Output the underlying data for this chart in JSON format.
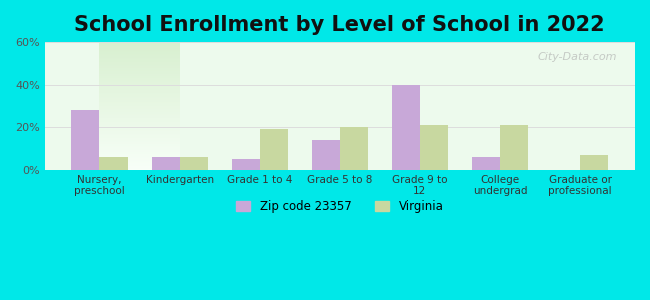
{
  "title": "School Enrollment by Level of School in 2022",
  "categories": [
    "Nursery,\npreschool",
    "Kindergarten",
    "Grade 1 to 4",
    "Grade 5 to 8",
    "Grade 9 to\n12",
    "College\nundergrad",
    "Graduate or\nprofessional"
  ],
  "zip_values": [
    28,
    6,
    5,
    14,
    40,
    6,
    0
  ],
  "va_values": [
    6,
    6,
    19,
    20,
    21,
    21,
    7
  ],
  "zip_color": "#c8a8d8",
  "va_color": "#c8d8a0",
  "background_color": "#00e8e8",
  "plot_bg_gradient_top": "#f0fff0",
  "plot_bg_gradient_bottom": "#e8ffe8",
  "ylim": [
    0,
    60
  ],
  "yticks": [
    0,
    20,
    40,
    60
  ],
  "ytick_labels": [
    "0%",
    "20%",
    "40%",
    "60%"
  ],
  "legend_zip_label": "Zip code 23357",
  "legend_va_label": "Virginia",
  "title_fontsize": 15,
  "watermark": "City-Data.com",
  "bar_width": 0.35
}
